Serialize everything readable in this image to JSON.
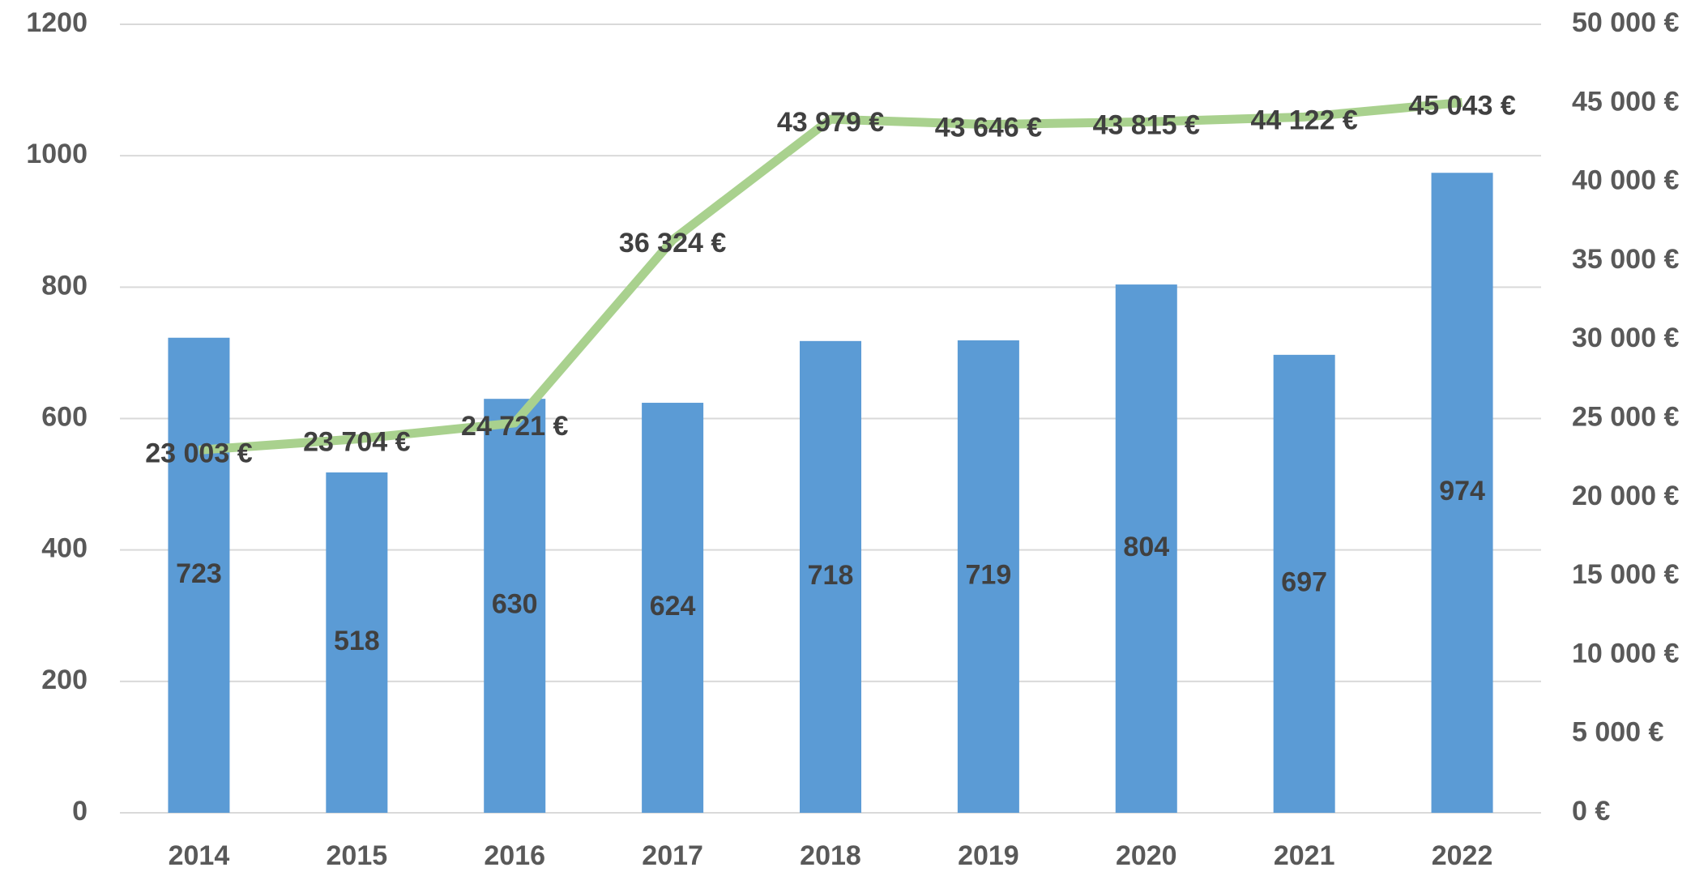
{
  "chart_data": {
    "type": "bar",
    "categories": [
      "2014",
      "2015",
      "2016",
      "2017",
      "2018",
      "2019",
      "2020",
      "2021",
      "2022"
    ],
    "series": [
      {
        "type": "bar",
        "color": "#5b9bd5",
        "values": [
          723,
          518,
          630,
          624,
          718,
          719,
          804,
          697,
          974
        ]
      },
      {
        "type": "line",
        "axis": "y2",
        "color": "#a9d18e",
        "values": [
          23003,
          23704,
          24721,
          36324,
          43979,
          43646,
          43815,
          44122,
          45043
        ],
        "value_labels": [
          "23 003 €",
          "23 704 €",
          "24 721 €",
          "36 324 €",
          "43 979 €",
          "43 646 €",
          "43 815 €",
          "44 122 €",
          "45 043 €"
        ]
      }
    ],
    "ylim": [
      0,
      1200
    ],
    "yticks": [
      0,
      200,
      400,
      600,
      800,
      1000,
      1200
    ],
    "y2lim": [
      0,
      50000
    ],
    "y2ticks": [
      {
        "value": 0,
        "label": "0 €"
      },
      {
        "value": 5000,
        "label": "5 000 €"
      },
      {
        "value": 10000,
        "label": "10 000 €"
      },
      {
        "value": 15000,
        "label": "15 000 €"
      },
      {
        "value": 20000,
        "label": "20 000 €"
      },
      {
        "value": 25000,
        "label": "25 000 €"
      },
      {
        "value": 30000,
        "label": "30 000 €"
      },
      {
        "value": 35000,
        "label": "35 000 €"
      },
      {
        "value": 40000,
        "label": "40 000 €"
      },
      {
        "value": 45000,
        "label": "45 000 €"
      },
      {
        "value": 50000,
        "label": "50 000 €"
      }
    ],
    "grid": true
  }
}
